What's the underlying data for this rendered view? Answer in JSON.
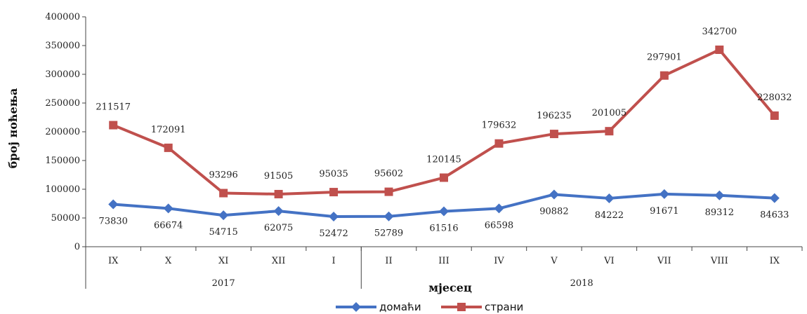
{
  "chart_data": {
    "type": "line",
    "categories": [
      "IX",
      "X",
      "XI",
      "XII",
      "I",
      "II",
      "III",
      "IV",
      "V",
      "VI",
      "VII",
      "VIII",
      "IX"
    ],
    "groups": [
      {
        "label": "2017",
        "from": 0,
        "to": 4
      },
      {
        "label": "2018",
        "from": 5,
        "to": 12
      }
    ],
    "series": [
      {
        "name": "домаћи",
        "color": "#4472C4",
        "marker": "diamond",
        "values": [
          73830,
          66674,
          54715,
          62075,
          52472,
          52789,
          61516,
          66598,
          90882,
          84222,
          91671,
          89312,
          84633
        ]
      },
      {
        "name": "страни",
        "color": "#C0504D",
        "marker": "square",
        "values": [
          211517,
          172091,
          93296,
          91505,
          95035,
          95602,
          120145,
          179632,
          196235,
          201005,
          297901,
          342700,
          228032
        ]
      }
    ],
    "xlabel": "мјесец",
    "ylabel": "број ноћења",
    "ylim": [
      0,
      400000
    ],
    "yticks": [
      0,
      50000,
      100000,
      150000,
      200000,
      250000,
      300000,
      350000,
      400000
    ],
    "grid": false,
    "legend": "bottom"
  }
}
